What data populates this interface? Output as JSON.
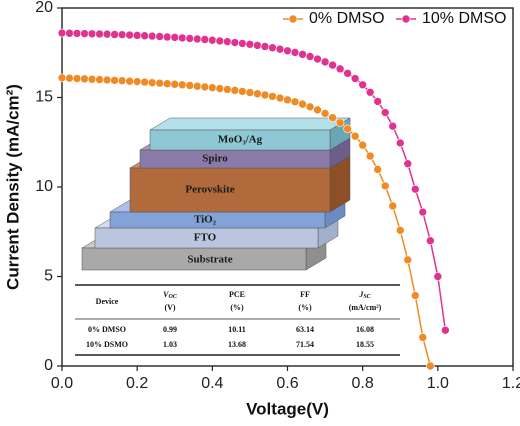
{
  "chart_data": {
    "type": "line",
    "xlabel": "Voltage(V)",
    "ylabel": "Current Density (mA/cm²)",
    "xlim": [
      0,
      1.2
    ],
    "xticks": [
      {
        "value": 0,
        "label": "0.0"
      },
      0.2,
      0.4,
      0.6,
      0.8,
      {
        "value": 1,
        "label": "1.0"
      },
      1.2
    ],
    "ylim": [
      0,
      20
    ],
    "yticks": [
      0,
      5,
      10,
      15,
      20
    ],
    "grid": false,
    "legend": "upper right",
    "series": [
      {
        "name": "0% DMSO",
        "color": "#f08a24",
        "x": [
          0,
          0.02,
          0.04,
          0.06,
          0.08,
          0.1,
          0.12,
          0.14,
          0.16,
          0.18,
          0.2,
          0.22,
          0.24,
          0.26,
          0.28,
          0.3,
          0.32,
          0.34,
          0.36,
          0.38,
          0.4,
          0.42,
          0.44,
          0.46,
          0.48,
          0.5,
          0.52,
          0.54,
          0.56,
          0.58,
          0.6,
          0.62,
          0.64,
          0.66,
          0.68,
          0.7,
          0.72,
          0.74,
          0.76,
          0.78,
          0.8,
          0.82,
          0.84,
          0.86,
          0.88,
          0.9,
          0.92,
          0.94,
          0.96,
          0.98
        ],
        "values": [
          16.1,
          16.08,
          16.06,
          16.04,
          16.02,
          16.0,
          15.98,
          15.96,
          15.94,
          15.91,
          15.89,
          15.86,
          15.83,
          15.8,
          15.77,
          15.74,
          15.71,
          15.67,
          15.63,
          15.59,
          15.55,
          15.5,
          15.45,
          15.4,
          15.34,
          15.28,
          15.21,
          15.14,
          15.06,
          14.97,
          14.87,
          14.76,
          14.63,
          14.48,
          14.31,
          14.11,
          13.87,
          13.59,
          13.25,
          12.84,
          12.34,
          11.73,
          10.98,
          10.06,
          8.94,
          7.58,
          5.93,
          3.94,
          1.6,
          0
        ]
      },
      {
        "name": "10% DMSO",
        "color": "#e0338f",
        "x": [
          0,
          0.02,
          0.04,
          0.06,
          0.08,
          0.1,
          0.12,
          0.14,
          0.16,
          0.18,
          0.2,
          0.22,
          0.24,
          0.26,
          0.28,
          0.3,
          0.32,
          0.34,
          0.36,
          0.38,
          0.4,
          0.42,
          0.44,
          0.46,
          0.48,
          0.5,
          0.52,
          0.54,
          0.56,
          0.58,
          0.6,
          0.62,
          0.64,
          0.66,
          0.68,
          0.7,
          0.72,
          0.74,
          0.76,
          0.78,
          0.8,
          0.82,
          0.84,
          0.86,
          0.88,
          0.9,
          0.92,
          0.94,
          0.96,
          0.98,
          1.0,
          1.02
        ],
        "values": [
          18.6,
          18.59,
          18.58,
          18.57,
          18.56,
          18.55,
          18.54,
          18.52,
          18.51,
          18.49,
          18.47,
          18.45,
          18.43,
          18.41,
          18.38,
          18.36,
          18.33,
          18.3,
          18.27,
          18.24,
          18.2,
          18.16,
          18.12,
          18.07,
          18.02,
          17.97,
          17.91,
          17.85,
          17.78,
          17.7,
          17.61,
          17.52,
          17.41,
          17.29,
          17.15,
          16.99,
          16.81,
          16.6,
          16.35,
          16.06,
          15.71,
          15.29,
          14.78,
          14.16,
          13.4,
          12.46,
          11.3,
          9.88,
          8.6,
          7.0,
          5.0,
          2.0
        ]
      }
    ],
    "inset": {
      "layers": [
        "MoO₃/Ag",
        "Spiro",
        "Perovskite",
        "TiO₂",
        "FTO",
        "Substrate"
      ],
      "table": {
        "headers": [
          {
            "name": "Device"
          },
          {
            "name": "V",
            "sub": "OC",
            "unit": "(V)"
          },
          {
            "name": "PCE",
            "unit": "(%)"
          },
          {
            "name": "FF",
            "unit": "(%)"
          },
          {
            "name": "J",
            "sub": "SC",
            "unit": "(mA/cm²)"
          }
        ],
        "rows": [
          [
            "0% DMSO",
            0.99,
            10.11,
            63.14,
            16.08
          ],
          [
            "10% DSMO",
            1.03,
            13.68,
            71.54,
            18.55
          ]
        ]
      }
    }
  }
}
